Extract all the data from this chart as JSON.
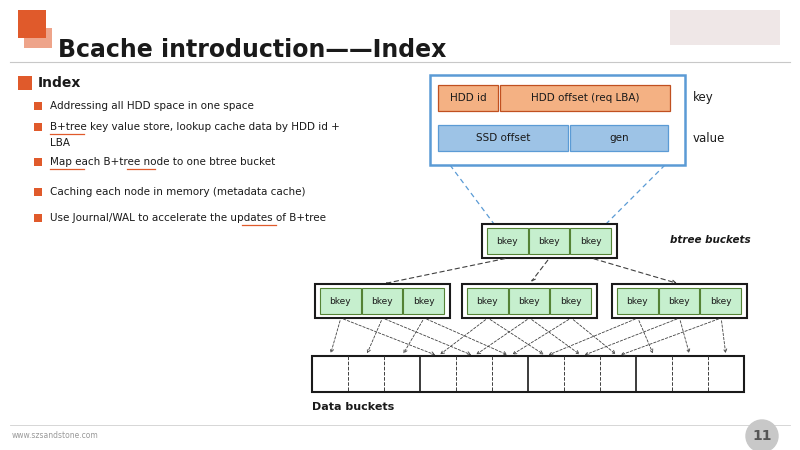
{
  "title": "Bcache introduction——Index",
  "bg_color": "#ffffff",
  "title_color": "#1a1a1a",
  "header_line_color": "#c8c8c8",
  "orange_color": "#e05a2b",
  "bullet_color": "#e05a2b",
  "slide_number": "11",
  "footer_text": "www.szsandstone.com",
  "index_title": "Index",
  "bullets": [
    "Addressing all HDD space in one space",
    "B+tree key value store, lookup cache data by HDD id +\nLBA",
    "Map each B+tree node to one btree bucket",
    "Caching each node in memory (metadata cache)",
    "Use Journal/WAL to accelerate the updates of B+tree"
  ],
  "key_box_border": "#5b9bd5",
  "key_row1_colors": [
    "#f4b183",
    "#f4b183"
  ],
  "key_row2_colors": [
    "#9dc3e6",
    "#9dc3e6"
  ],
  "key_label": "key",
  "value_label": "value",
  "bkey_fill": "#c6efce",
  "bkey_edge": "#548235",
  "node_edge": "#1a1a1a",
  "btree_buckets_label": "btree buckets",
  "data_buckets_label": "Data buckets",
  "blue_dashed_color": "#5b9bd5",
  "dark_dashed_color": "#404040"
}
